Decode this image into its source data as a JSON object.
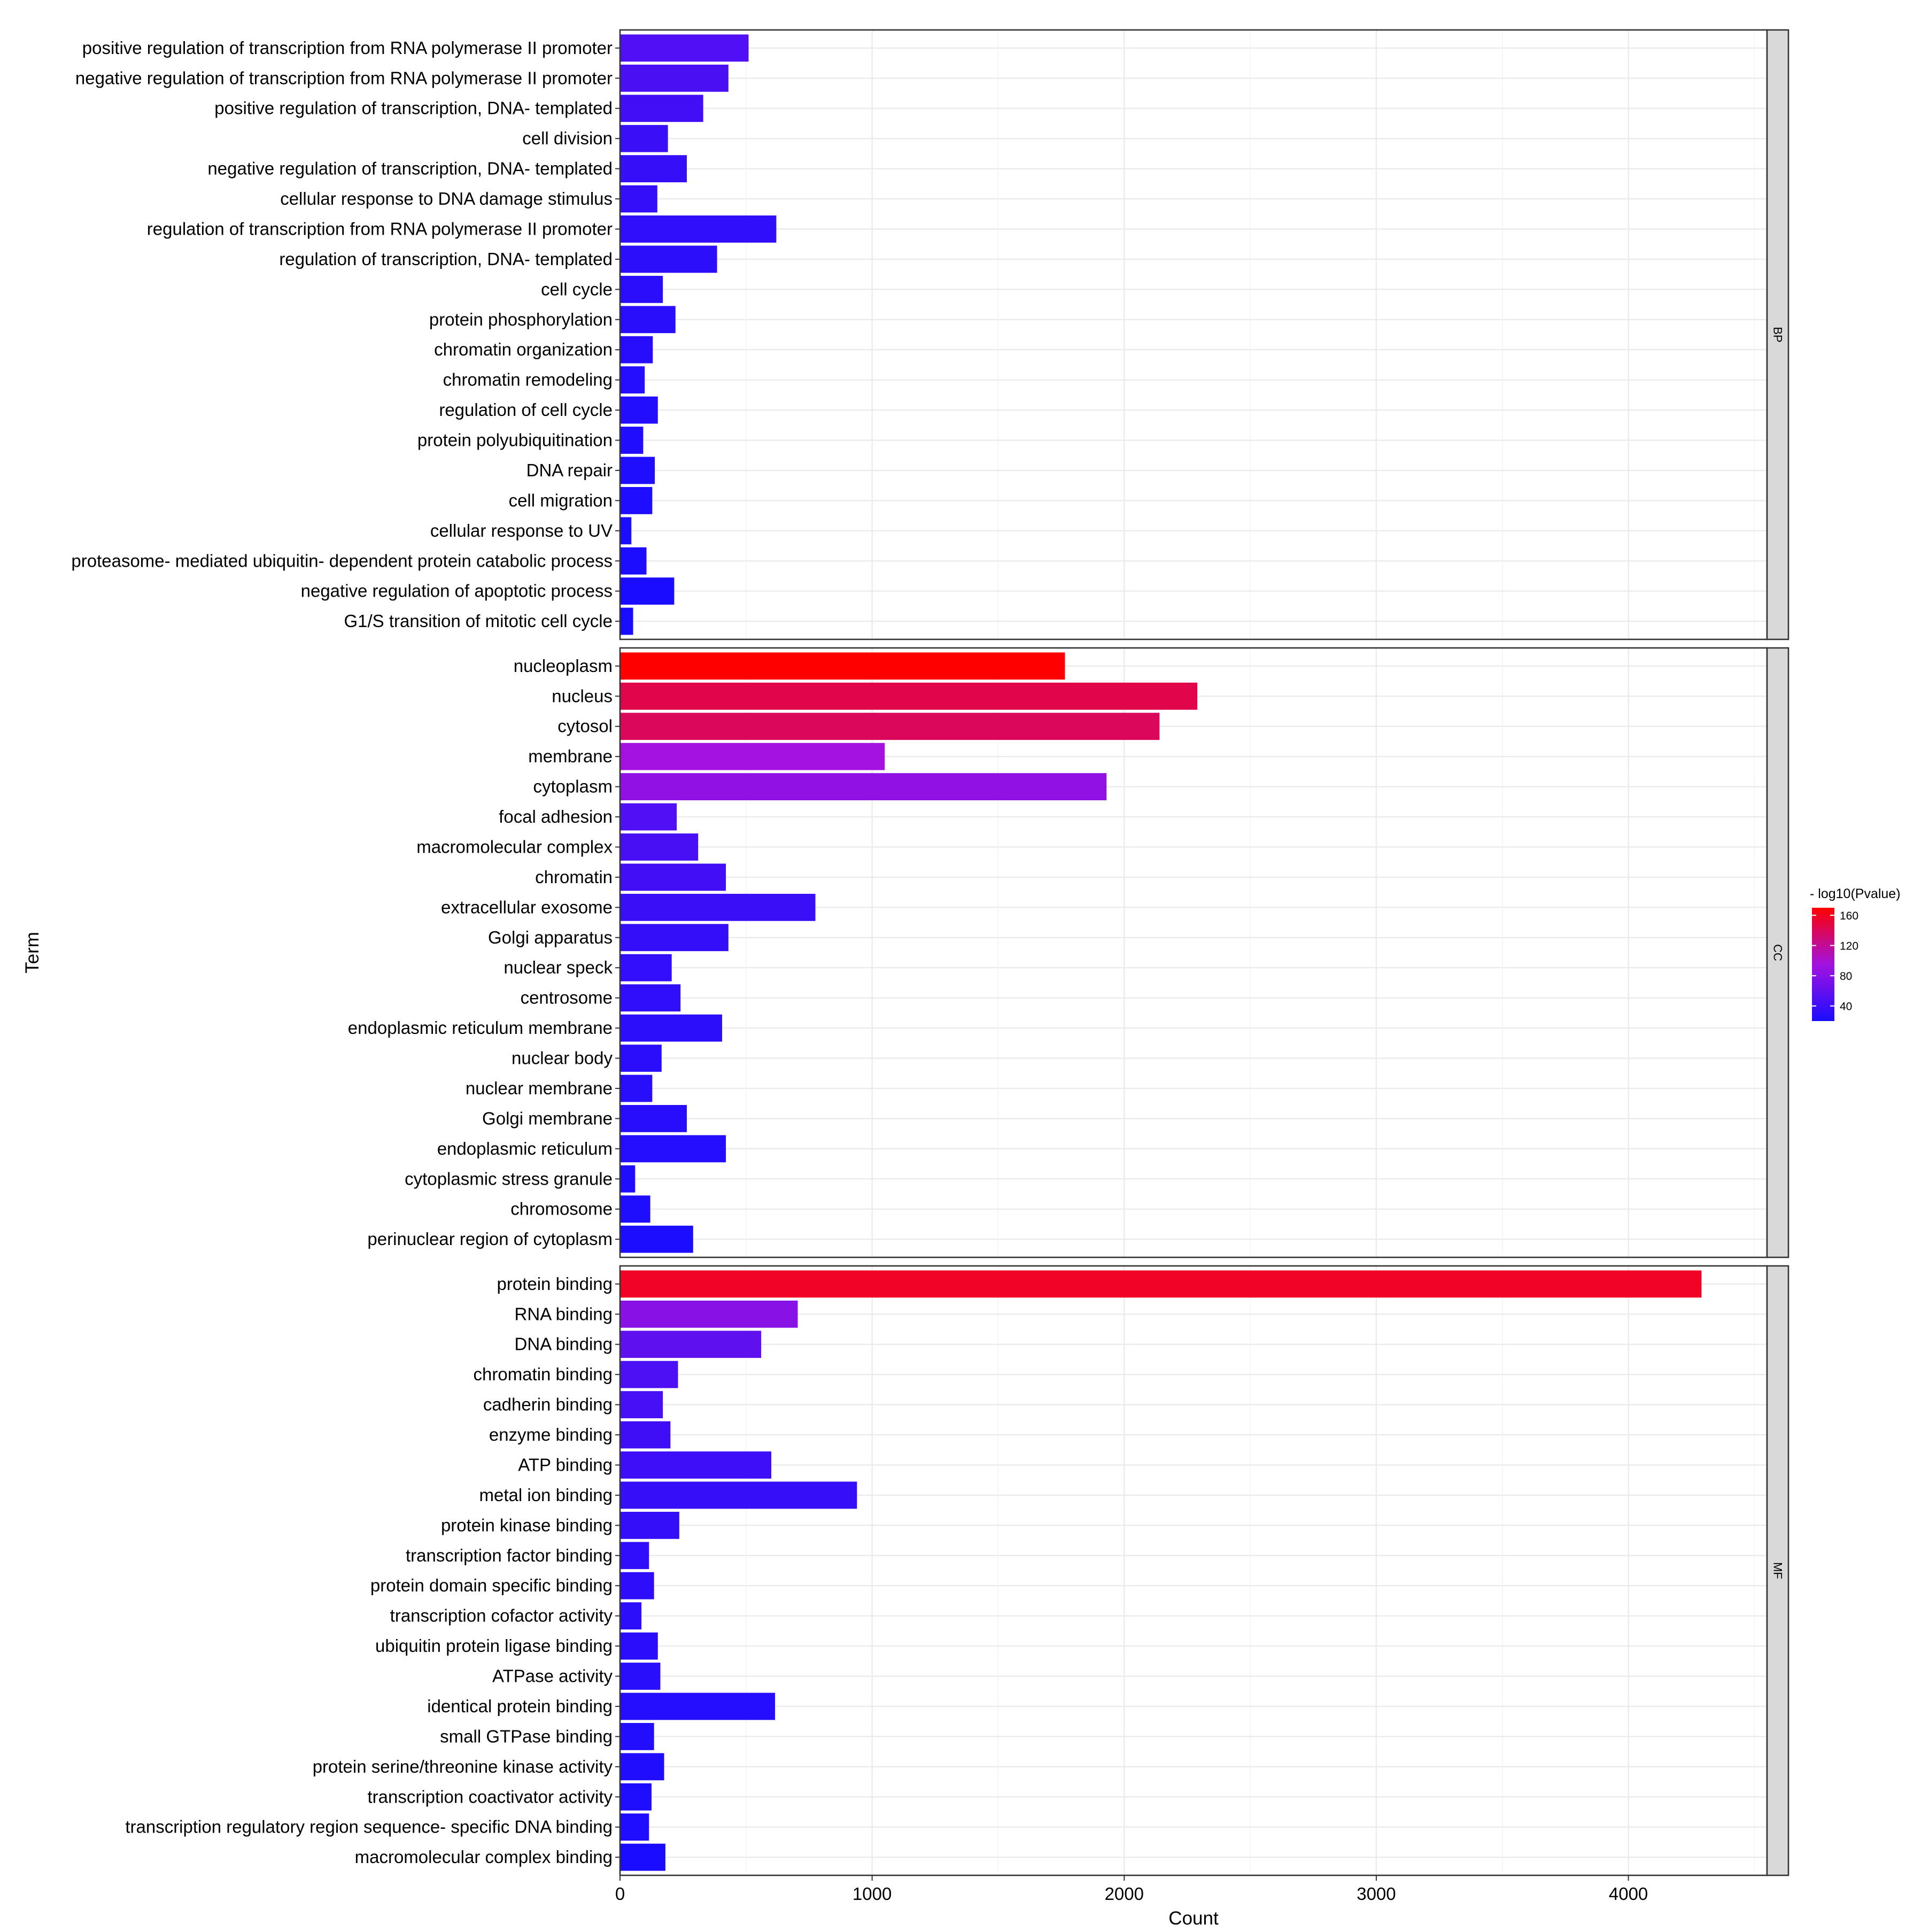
{
  "chart_data": {
    "type": "bar",
    "orientation": "horizontal",
    "xlabel": "Count",
    "ylabel": "Term",
    "xlim": [
      0,
      4550
    ],
    "xticks": [
      0,
      1000,
      2000,
      3000,
      4000
    ],
    "grid": true,
    "legend": {
      "title": "- log10(Pvalue)",
      "ticks": [
        40,
        80,
        120,
        160
      ],
      "range": [
        20,
        170
      ],
      "low_color": "#1a0dff",
      "mid_color": "#a312e0",
      "high_color": "#ff0000",
      "placement": "right"
    },
    "facets": [
      {
        "name": "BP",
        "terms": [
          {
            "label": "positive regulation of transcription from RNA polymerase II promoter",
            "count": 510,
            "logp": 50
          },
          {
            "label": "negative regulation of transcription from RNA polymerase II promoter",
            "count": 430,
            "logp": 47
          },
          {
            "label": "positive regulation of transcription, DNA- templated",
            "count": 330,
            "logp": 42
          },
          {
            "label": "cell division",
            "count": 190,
            "logp": 38
          },
          {
            "label": "negative regulation of transcription, DNA- templated",
            "count": 265,
            "logp": 36
          },
          {
            "label": "cellular response to DNA damage stimulus",
            "count": 148,
            "logp": 34
          },
          {
            "label": "regulation of transcription from RNA polymerase II promoter",
            "count": 620,
            "logp": 32
          },
          {
            "label": "regulation of transcription, DNA- templated",
            "count": 385,
            "logp": 30
          },
          {
            "label": "cell cycle",
            "count": 170,
            "logp": 29
          },
          {
            "label": "protein phosphorylation",
            "count": 220,
            "logp": 28
          },
          {
            "label": "chromatin organization",
            "count": 130,
            "logp": 27
          },
          {
            "label": "chromatin remodeling",
            "count": 98,
            "logp": 26
          },
          {
            "label": "regulation of cell cycle",
            "count": 150,
            "logp": 25
          },
          {
            "label": "protein polyubiquitination",
            "count": 92,
            "logp": 24
          },
          {
            "label": "DNA repair",
            "count": 138,
            "logp": 23
          },
          {
            "label": "cell migration",
            "count": 128,
            "logp": 22
          },
          {
            "label": "cellular response to UV",
            "count": 45,
            "logp": 21
          },
          {
            "label": "proteasome- mediated ubiquitin- dependent protein catabolic process",
            "count": 105,
            "logp": 21
          },
          {
            "label": "negative regulation of apoptotic process",
            "count": 215,
            "logp": 20
          },
          {
            "label": "G1/S transition of mitotic cell cycle",
            "count": 52,
            "logp": 20
          }
        ]
      },
      {
        "name": "CC",
        "terms": [
          {
            "label": "nucleoplasm",
            "count": 1765,
            "logp": 170
          },
          {
            "label": "nucleus",
            "count": 2290,
            "logp": 145
          },
          {
            "label": "cytosol",
            "count": 2140,
            "logp": 140
          },
          {
            "label": "membrane",
            "count": 1050,
            "logp": 95
          },
          {
            "label": "cytoplasm",
            "count": 1930,
            "logp": 85
          },
          {
            "label": "focal adhesion",
            "count": 225,
            "logp": 50
          },
          {
            "label": "macromolecular complex",
            "count": 310,
            "logp": 45
          },
          {
            "label": "chromatin",
            "count": 420,
            "logp": 42
          },
          {
            "label": "extracellular exosome",
            "count": 775,
            "logp": 38
          },
          {
            "label": "Golgi apparatus",
            "count": 430,
            "logp": 35
          },
          {
            "label": "nuclear speck",
            "count": 205,
            "logp": 33
          },
          {
            "label": "centrosome",
            "count": 240,
            "logp": 32
          },
          {
            "label": "endoplasmic reticulum membrane",
            "count": 405,
            "logp": 30
          },
          {
            "label": "nuclear body",
            "count": 165,
            "logp": 29
          },
          {
            "label": "nuclear membrane",
            "count": 128,
            "logp": 28
          },
          {
            "label": "Golgi membrane",
            "count": 265,
            "logp": 27
          },
          {
            "label": "endoplasmic reticulum",
            "count": 420,
            "logp": 26
          },
          {
            "label": "cytoplasmic stress granule",
            "count": 60,
            "logp": 24
          },
          {
            "label": "chromosome",
            "count": 120,
            "logp": 23
          },
          {
            "label": "perinuclear region of cytoplasm",
            "count": 290,
            "logp": 21
          }
        ]
      },
      {
        "name": "MF",
        "terms": [
          {
            "label": "protein binding",
            "count": 4290,
            "logp": 158
          },
          {
            "label": "RNA binding",
            "count": 705,
            "logp": 80
          },
          {
            "label": "DNA binding",
            "count": 560,
            "logp": 58
          },
          {
            "label": "chromatin binding",
            "count": 230,
            "logp": 48
          },
          {
            "label": "cadherin binding",
            "count": 170,
            "logp": 44
          },
          {
            "label": "enzyme binding",
            "count": 200,
            "logp": 41
          },
          {
            "label": "ATP binding",
            "count": 600,
            "logp": 39
          },
          {
            "label": "metal ion binding",
            "count": 940,
            "logp": 36
          },
          {
            "label": "protein kinase binding",
            "count": 235,
            "logp": 34
          },
          {
            "label": "transcription factor binding",
            "count": 115,
            "logp": 32
          },
          {
            "label": "protein domain specific binding",
            "count": 135,
            "logp": 31
          },
          {
            "label": "transcription cofactor activity",
            "count": 85,
            "logp": 30
          },
          {
            "label": "ubiquitin protein ligase binding",
            "count": 150,
            "logp": 29
          },
          {
            "label": "ATPase activity",
            "count": 160,
            "logp": 28
          },
          {
            "label": "identical protein binding",
            "count": 615,
            "logp": 26
          },
          {
            "label": "small GTPase binding",
            "count": 135,
            "logp": 25
          },
          {
            "label": "protein serine/threonine kinase activity",
            "count": 175,
            "logp": 24
          },
          {
            "label": "transcription coactivator activity",
            "count": 125,
            "logp": 23
          },
          {
            "label": "transcription regulatory region sequence- specific DNA binding",
            "count": 115,
            "logp": 22
          },
          {
            "label": "macromolecular complex binding",
            "count": 180,
            "logp": 20
          }
        ]
      }
    ]
  }
}
